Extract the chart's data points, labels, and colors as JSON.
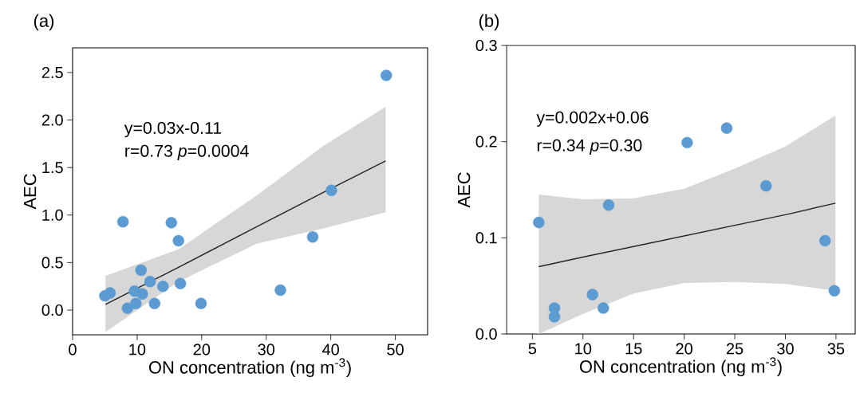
{
  "chart_data": [
    {
      "type": "scatter",
      "title": "(a)",
      "xlabel": "ON concentration (ng m$^{-3}$)",
      "ylabel": "AEC",
      "marker": "circle",
      "xlim": [
        0,
        55
      ],
      "ylim": [
        -0.26,
        2.76
      ],
      "xticks": [
        0,
        10,
        20,
        30,
        40,
        50
      ],
      "yticks": [
        {
          "value": 0,
          "label": "0.0"
        },
        {
          "value": 0.5,
          "label": "0.5"
        },
        {
          "value": 1,
          "label": "1.0"
        },
        {
          "value": 1.5,
          "label": "1.5"
        },
        {
          "value": 2,
          "label": "2.0"
        },
        {
          "value": 2.5,
          "label": "2.5"
        }
      ],
      "annotations": [
        "y=0.03x-0.11",
        "r=0.73 *p*=0.0004"
      ],
      "series": [
        {
          "color": "#5b9bd2",
          "x": [
            48.6,
            40.1,
            37.2,
            32.2,
            19.9,
            16.7,
            16.4,
            15.3,
            7.8,
            10.6,
            12.0,
            14.0,
            12.7,
            9.8,
            8.5,
            9.6,
            10.8,
            5.8,
            5.0
          ],
          "values": [
            2.47,
            1.26,
            0.77,
            0.21,
            0.07,
            0.28,
            0.73,
            0.92,
            0.93,
            0.42,
            0.3,
            0.25,
            0.07,
            0.07,
            0.02,
            0.2,
            0.17,
            0.18,
            0.15
          ]
        },
        {
          "type": "line",
          "marker": "none",
          "color": "#262626",
          "x": [
            5.1,
            16.4,
            28.6,
            38.9,
            48.5
          ],
          "values": [
            0.06,
            0.45,
            0.88,
            1.24,
            1.57
          ],
          "lower": [
            -0.23,
            0.3,
            0.7,
            0.86,
            1.03
          ],
          "upper": [
            0.36,
            0.64,
            1.21,
            1.73,
            2.14
          ]
        }
      ]
    },
    {
      "type": "scatter",
      "title": "(b)",
      "xlabel": "ON concentration (ng m$^{-3}$)",
      "ylabel": "AEC",
      "marker": "circle",
      "xlim": [
        2.45,
        36.9
      ],
      "ylim": [
        0,
        0.3
      ],
      "xticks": [
        5,
        10,
        15,
        20,
        25,
        30,
        35
      ],
      "yticks": [
        {
          "value": 0,
          "label": "0.0"
        },
        {
          "value": 0.1,
          "label": "0.1"
        },
        {
          "value": 0.2,
          "label": "0.2"
        },
        {
          "value": 0.3,
          "label": "0.3"
        }
      ],
      "annotations": [
        "y=0.002x+0.06",
        "r=0.34 *p*=0.30"
      ],
      "series": [
        {
          "color": "#5b9bd2",
          "x": [
            5.63,
            7.18,
            7.18,
            10.94,
            12.01,
            12.54,
            20.29,
            24.2,
            28.09,
            33.92,
            34.84
          ],
          "values": [
            0.116,
            0.027,
            0.018,
            0.041,
            0.027,
            0.134,
            0.199,
            0.214,
            0.154,
            0.097,
            0.045
          ]
        },
        {
          "type": "line",
          "marker": "none",
          "color": "#262626",
          "x": [
            5.63,
            10,
            15,
            20,
            25,
            30,
            34.95
          ],
          "values": [
            0.07,
            0.08,
            0.091,
            0.102,
            0.113,
            0.124,
            0.136
          ],
          "lower": [
            0,
            0.021,
            0.042,
            0.053,
            0.054,
            0.052,
            0.045
          ],
          "upper": [
            0.145,
            0.14,
            0.141,
            0.151,
            0.172,
            0.195,
            0.227
          ]
        }
      ]
    }
  ]
}
